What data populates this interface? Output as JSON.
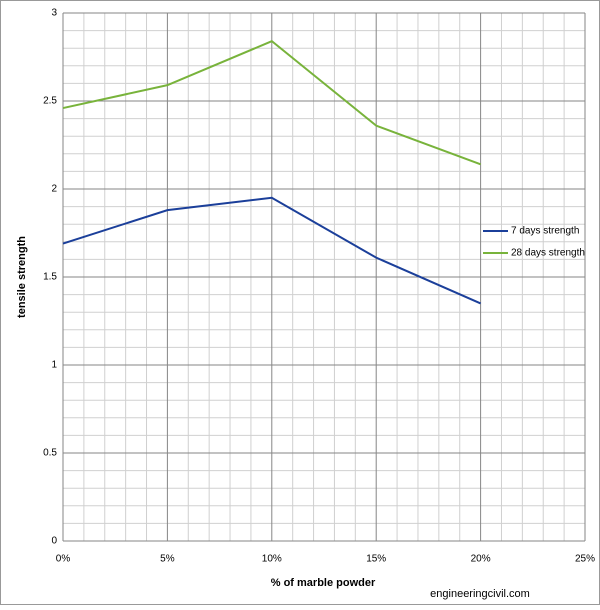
{
  "chart_data": {
    "type": "line",
    "x_label": "% of marble powder",
    "y_label": "tensile strength",
    "x": [
      0,
      5,
      10,
      15,
      20
    ],
    "series": [
      {
        "name": "7 days strength",
        "color": "#1b3f9a",
        "values": [
          1.69,
          1.88,
          1.95,
          1.61,
          1.35
        ]
      },
      {
        "name": "28 days strength",
        "color": "#78b33b",
        "values": [
          2.46,
          2.59,
          2.84,
          2.36,
          2.14
        ]
      }
    ],
    "xlim": [
      0,
      25
    ],
    "xticks": [
      {
        "value": 0,
        "label": "0%"
      },
      {
        "value": 5,
        "label": "5%"
      },
      {
        "value": 10,
        "label": "10%"
      },
      {
        "value": 15,
        "label": "15%"
      },
      {
        "value": 20,
        "label": "20%"
      },
      {
        "value": 25,
        "label": "25%"
      }
    ],
    "ylim": [
      0,
      3
    ],
    "yticks": [
      0,
      0.5,
      1,
      1.5,
      2,
      2.5,
      3
    ],
    "grid": true,
    "legend": "right",
    "watermark": "engineeringcivil.com"
  }
}
